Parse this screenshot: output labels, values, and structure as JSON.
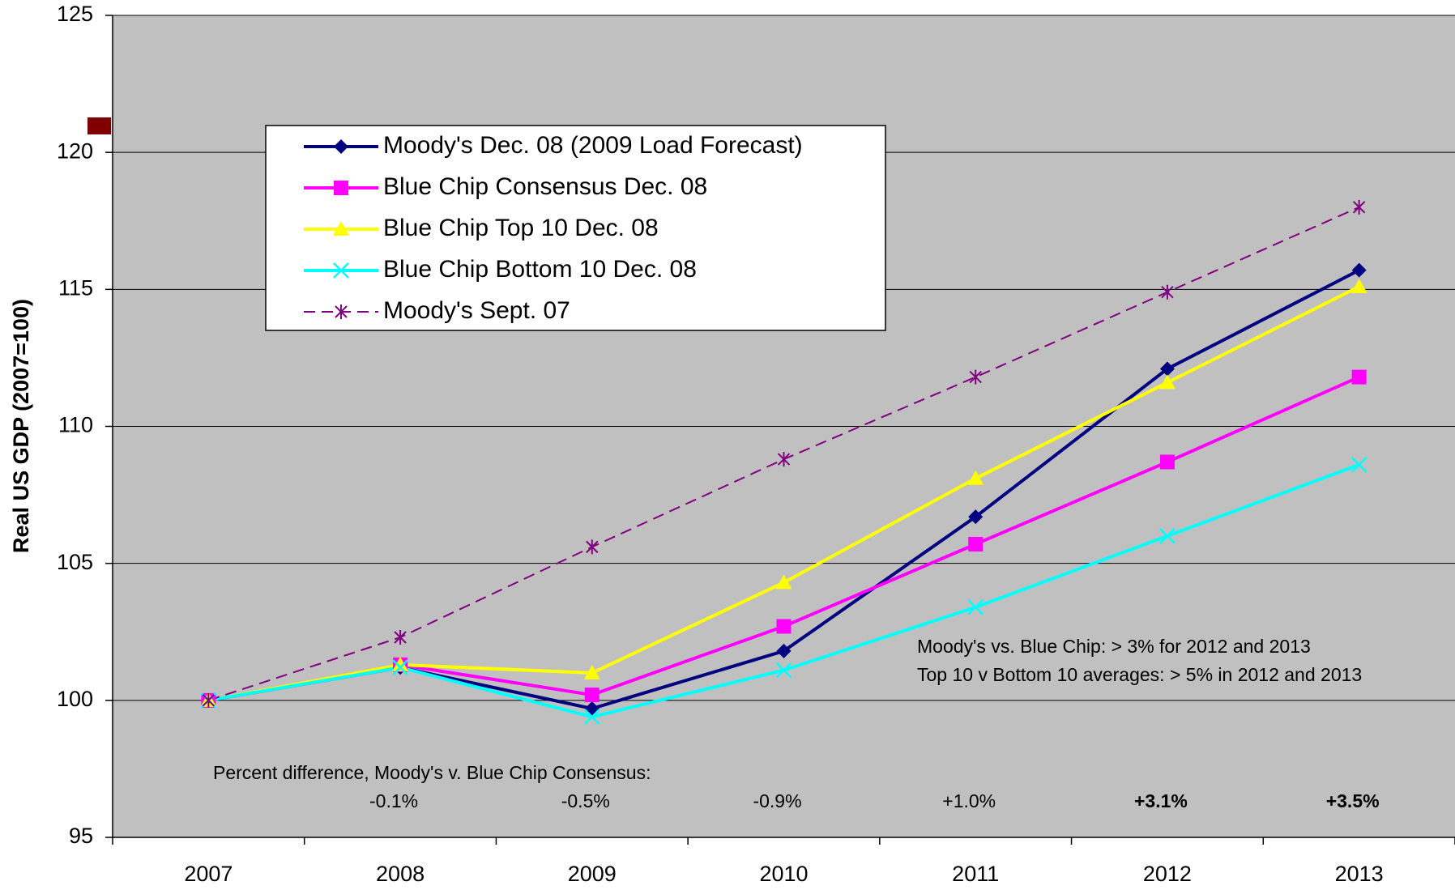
{
  "chart_data": {
    "type": "line",
    "ylabel": "Real US GDP (2007=100)",
    "categories": [
      "2007",
      "2008",
      "2009",
      "2010",
      "2011",
      "2012",
      "2013"
    ],
    "series": [
      {
        "name": "Moody's Dec. 08 (2009 Load Forecast)",
        "color": "#000080",
        "marker": "diamond",
        "dash": false,
        "values": [
          100,
          101.2,
          99.7,
          101.8,
          106.7,
          112.1,
          115.7
        ]
      },
      {
        "name": "Blue Chip Consensus Dec. 08",
        "color": "#ff00ff",
        "marker": "square",
        "dash": false,
        "values": [
          100,
          101.3,
          100.2,
          102.7,
          105.7,
          108.7,
          111.8
        ]
      },
      {
        "name": "Blue Chip Top 10 Dec. 08",
        "color": "#ffff00",
        "marker": "triangle",
        "dash": false,
        "values": [
          100,
          101.3,
          101.0,
          104.3,
          108.1,
          111.6,
          115.1
        ]
      },
      {
        "name": "Blue Chip Bottom 10 Dec. 08",
        "color": "#00ffff",
        "marker": "x",
        "dash": false,
        "values": [
          100,
          101.2,
          99.4,
          101.1,
          103.4,
          106.0,
          108.6
        ]
      },
      {
        "name": "Moody's Sept. 07",
        "color": "#800080",
        "marker": "asterisk",
        "dash": true,
        "values": [
          100,
          102.3,
          105.6,
          108.8,
          111.8,
          114.9,
          118.0
        ]
      }
    ],
    "ylim": [
      95,
      125
    ],
    "yticks": [
      95,
      100,
      105,
      110,
      115,
      120,
      125
    ],
    "grid": true,
    "annotations": {
      "percent_title": "Percent difference, Moody's v. Blue Chip Consensus:",
      "percent_labels": [
        "-0.1%",
        "-0.5%",
        "-0.9%",
        "+1.0%",
        "+3.1%",
        "+3.5%"
      ],
      "note": [
        "Moody's vs. Blue Chip: > 3% for 2012 and 2013",
        "Top 10 v Bottom 10 averages: > 5% in 2012 and 2013"
      ]
    }
  }
}
